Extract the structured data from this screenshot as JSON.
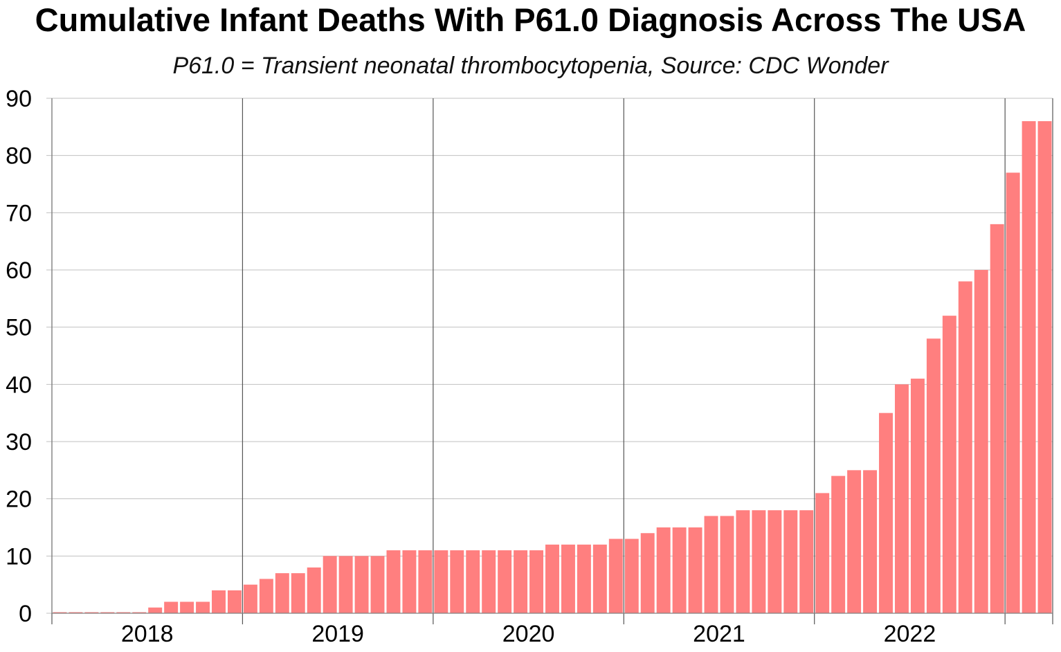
{
  "chart_data": {
    "type": "bar",
    "title": "Cumulative Infant Deaths With P61.0 Diagnosis Across The USA",
    "subtitle": "P61.0 = Transient neonatal thrombocytopenia, Source: CDC Wonder",
    "xlabel": "",
    "ylabel": "",
    "ylim": [
      0,
      90
    ],
    "yticks": [
      0,
      10,
      20,
      30,
      40,
      50,
      60,
      70,
      80,
      90
    ],
    "year_labels": [
      "2018",
      "2019",
      "2020",
      "2021",
      "2022"
    ],
    "months_per_year": 12,
    "grid": true,
    "legend": "none",
    "colors": {
      "bar": "#ff7f7f",
      "grid": "#c0c0c0",
      "year_divider": "#555555",
      "axis": "#808080"
    },
    "values": [
      0,
      0,
      0,
      0,
      0,
      0,
      1,
      2,
      2,
      2,
      4,
      4,
      5,
      6,
      7,
      7,
      8,
      10,
      10,
      10,
      10,
      11,
      11,
      11,
      11,
      11,
      11,
      11,
      11,
      11,
      11,
      12,
      12,
      12,
      12,
      13,
      13,
      14,
      15,
      15,
      15,
      17,
      17,
      18,
      18,
      18,
      18,
      18,
      21,
      24,
      25,
      25,
      35,
      40,
      41,
      48,
      52,
      58,
      60,
      68,
      77,
      86,
      86
    ]
  }
}
